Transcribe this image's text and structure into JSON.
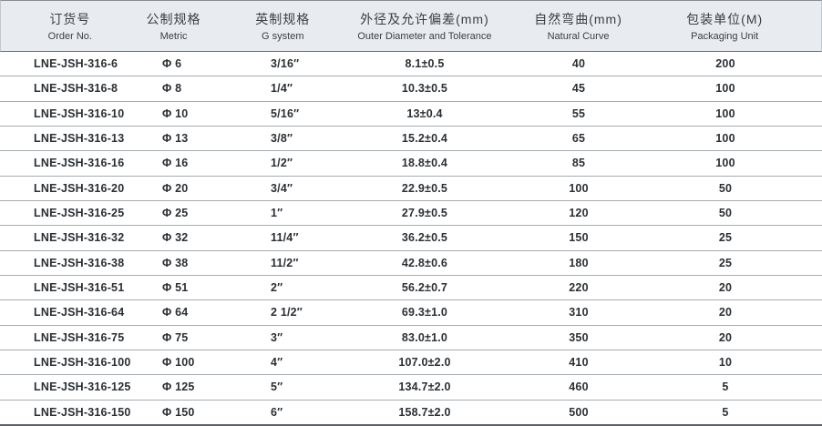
{
  "table": {
    "columns": [
      {
        "id": "order_no",
        "zh": "订货号",
        "en": "Order No."
      },
      {
        "id": "metric",
        "zh": "公制规格",
        "en": "Metric"
      },
      {
        "id": "g_system",
        "zh": "英制规格",
        "en": "G system"
      },
      {
        "id": "outer_diameter",
        "zh": "外径及允许偏差(mm)",
        "en": "Outer Diameter and Tolerance"
      },
      {
        "id": "natural_curve",
        "zh": "自然弯曲(mm)",
        "en": "Natural Curve"
      },
      {
        "id": "packaging_unit",
        "zh": "包装单位(M)",
        "en": "Packaging Unit"
      }
    ],
    "rows": [
      {
        "order_no": "LNE-JSH-316-6",
        "metric": "Φ 6",
        "g_system": "3/16″",
        "outer_diameter": "8.1±0.5",
        "natural_curve": "40",
        "packaging_unit": "200"
      },
      {
        "order_no": "LNE-JSH-316-8",
        "metric": "Φ 8",
        "g_system": "1/4″",
        "outer_diameter": "10.3±0.5",
        "natural_curve": "45",
        "packaging_unit": "100"
      },
      {
        "order_no": "LNE-JSH-316-10",
        "metric": "Φ 10",
        "g_system": "5/16″",
        "outer_diameter": "13±0.4",
        "natural_curve": "55",
        "packaging_unit": "100"
      },
      {
        "order_no": "LNE-JSH-316-13",
        "metric": "Φ 13",
        "g_system": "3/8″",
        "outer_diameter": "15.2±0.4",
        "natural_curve": "65",
        "packaging_unit": "100"
      },
      {
        "order_no": "LNE-JSH-316-16",
        "metric": "Φ 16",
        "g_system": "1/2″",
        "outer_diameter": "18.8±0.4",
        "natural_curve": "85",
        "packaging_unit": "100"
      },
      {
        "order_no": "LNE-JSH-316-20",
        "metric": "Φ 20",
        "g_system": "3/4″",
        "outer_diameter": "22.9±0.5",
        "natural_curve": "100",
        "packaging_unit": "50"
      },
      {
        "order_no": "LNE-JSH-316-25",
        "metric": "Φ 25",
        "g_system": "1″",
        "outer_diameter": "27.9±0.5",
        "natural_curve": "120",
        "packaging_unit": "50"
      },
      {
        "order_no": "LNE-JSH-316-32",
        "metric": "Φ 32",
        "g_system": "11/4″",
        "outer_diameter": "36.2±0.5",
        "natural_curve": "150",
        "packaging_unit": "25"
      },
      {
        "order_no": "LNE-JSH-316-38",
        "metric": "Φ 38",
        "g_system": "11/2″",
        "outer_diameter": "42.8±0.6",
        "natural_curve": "180",
        "packaging_unit": "25"
      },
      {
        "order_no": "LNE-JSH-316-51",
        "metric": "Φ 51",
        "g_system": "2″",
        "outer_diameter": "56.2±0.7",
        "natural_curve": "220",
        "packaging_unit": "20"
      },
      {
        "order_no": "LNE-JSH-316-64",
        "metric": "Φ 64",
        "g_system": "2 1/2″",
        "outer_diameter": "69.3±1.0",
        "natural_curve": "310",
        "packaging_unit": "20"
      },
      {
        "order_no": "LNE-JSH-316-75",
        "metric": "Φ 75",
        "g_system": "3″",
        "outer_diameter": "83.0±1.0",
        "natural_curve": "350",
        "packaging_unit": "20"
      },
      {
        "order_no": "LNE-JSH-316-100",
        "metric": "Φ 100",
        "g_system": "4″",
        "outer_diameter": "107.0±2.0",
        "natural_curve": "410",
        "packaging_unit": "10"
      },
      {
        "order_no": "LNE-JSH-316-125",
        "metric": "Φ 125",
        "g_system": "5″",
        "outer_diameter": "134.7±2.0",
        "natural_curve": "460",
        "packaging_unit": "5"
      },
      {
        "order_no": "LNE-JSH-316-150",
        "metric": "Φ 150",
        "g_system": "6″",
        "outer_diameter": "158.7±2.0",
        "natural_curve": "500",
        "packaging_unit": "5"
      }
    ]
  },
  "colors": {
    "header_bg": "#e8ebef",
    "header_text": "#3b4046",
    "data_text": "#2b2f34",
    "row_divider": "#a6abb0",
    "strong_divider": "#5d6268"
  }
}
